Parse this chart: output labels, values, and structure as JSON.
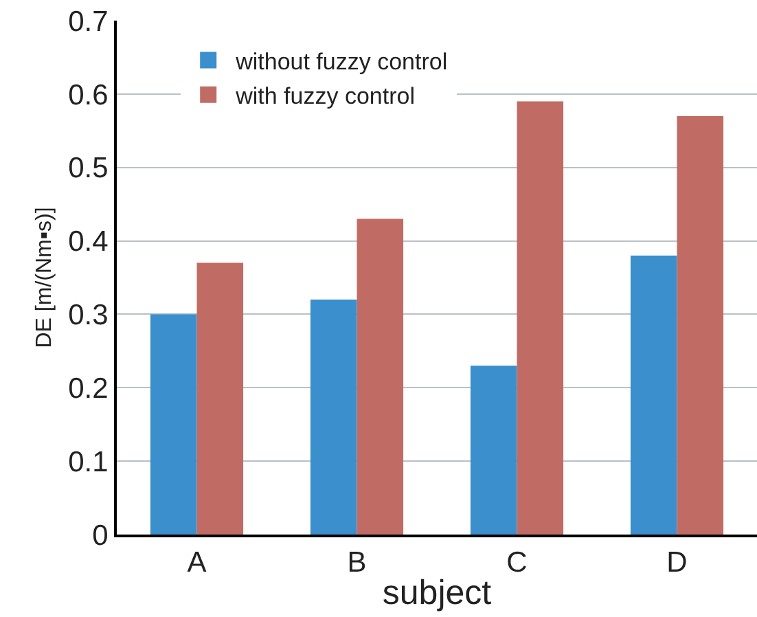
{
  "chart_data": {
    "type": "bar",
    "xlabel": "subject",
    "ylabel": "DE [m/(Nm▪s)]",
    "categories": [
      "A",
      "B",
      "C",
      "D"
    ],
    "series": [
      {
        "name": "without fuzzy control",
        "color": "#3a8fcc",
        "values": [
          0.3,
          0.32,
          0.23,
          0.38
        ]
      },
      {
        "name": "with fuzzy control",
        "color": "#c06c64",
        "values": [
          0.37,
          0.43,
          0.59,
          0.57
        ]
      }
    ],
    "ylim": [
      0,
      0.7
    ],
    "yticks": [
      0,
      0.1,
      0.2,
      0.3,
      0.4,
      0.5,
      0.6,
      0.7
    ],
    "grid": "y",
    "legend": "top left"
  }
}
